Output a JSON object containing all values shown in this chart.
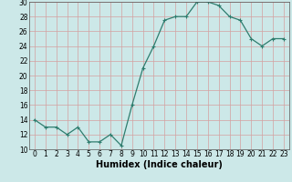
{
  "title": "",
  "xlabel": "Humidex (Indice chaleur)",
  "ylabel": "",
  "x": [
    0,
    1,
    2,
    3,
    4,
    5,
    6,
    7,
    8,
    9,
    10,
    11,
    12,
    13,
    14,
    15,
    16,
    17,
    18,
    19,
    20,
    21,
    22,
    23
  ],
  "y": [
    14,
    13,
    13,
    12,
    13,
    11,
    11,
    12,
    10.5,
    16,
    21,
    24,
    27.5,
    28,
    28,
    30,
    30,
    29.5,
    28,
    27.5,
    25,
    24,
    25,
    25
  ],
  "line_color": "#2e7d6e",
  "marker": "+",
  "bg_color": "#cce8e8",
  "grid_color": "#d4a0a0",
  "ylim": [
    10,
    30
  ],
  "yticks": [
    10,
    12,
    14,
    16,
    18,
    20,
    22,
    24,
    26,
    28,
    30
  ],
  "xticks": [
    0,
    1,
    2,
    3,
    4,
    5,
    6,
    7,
    8,
    9,
    10,
    11,
    12,
    13,
    14,
    15,
    16,
    17,
    18,
    19,
    20,
    21,
    22,
    23
  ],
  "tick_fontsize": 5.5,
  "label_fontsize": 7
}
